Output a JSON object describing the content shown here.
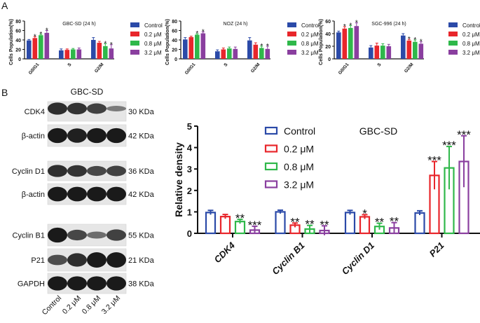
{
  "panel_labels": {
    "a": "A",
    "b": "B"
  },
  "colors": {
    "control": "#2b4aa8",
    "c02": "#e8262b",
    "c08": "#2fb84a",
    "c32": "#8a3f9f"
  },
  "legend": [
    "Control",
    "0.2 μM",
    "0.8 μM",
    "3.2 μM"
  ],
  "chart_data": [
    {
      "type": "bar",
      "title": "GBC-SD (24 h)",
      "ylabel": "Cells Population(%)",
      "categories": [
        "G0/G1",
        "S",
        "G2/M"
      ],
      "ylim": [
        0,
        80
      ],
      "yticks": [
        0,
        20,
        40,
        60,
        80
      ],
      "series": [
        {
          "name": "Control",
          "values": [
            39,
            18,
            40
          ],
          "errors": [
            2,
            3,
            5
          ],
          "stars": [
            "",
            "",
            ""
          ]
        },
        {
          "name": "0.2 μM",
          "values": [
            44,
            19,
            34
          ],
          "errors": [
            3,
            2,
            3
          ],
          "stars": [
            "*",
            "",
            ""
          ]
        },
        {
          "name": "0.8 μM",
          "values": [
            50,
            20,
            27
          ],
          "errors": [
            2,
            2,
            5
          ],
          "stars": [
            "*",
            "",
            "*"
          ]
        },
        {
          "name": "3.2 μM",
          "values": [
            55,
            20,
            22
          ],
          "errors": [
            5,
            3,
            8
          ],
          "stars": [
            "*",
            "",
            "*"
          ]
        }
      ]
    },
    {
      "type": "bar",
      "title": "NOZ (24 h)",
      "ylabel": "Cells Population(%)",
      "categories": [
        "G0/G1",
        "S",
        "G2/M"
      ],
      "ylim": [
        0,
        80
      ],
      "yticks": [
        0,
        20,
        40,
        60,
        80
      ],
      "series": [
        {
          "name": "Control",
          "values": [
            41,
            16,
            39
          ],
          "errors": [
            4,
            3,
            6
          ],
          "stars": [
            "",
            "",
            ""
          ]
        },
        {
          "name": "0.2 μM",
          "values": [
            46,
            20,
            30
          ],
          "errors": [
            2,
            3,
            4
          ],
          "stars": [
            "",
            "",
            ""
          ]
        },
        {
          "name": "0.8 μM",
          "values": [
            51,
            22,
            23
          ],
          "errors": [
            2,
            3,
            4
          ],
          "stars": [
            "*",
            "",
            "*"
          ]
        },
        {
          "name": "3.2 μM",
          "values": [
            54,
            21,
            21
          ],
          "errors": [
            3,
            4,
            6
          ],
          "stars": [
            "*",
            "",
            "*"
          ]
        }
      ]
    },
    {
      "type": "bar",
      "title": "SGC-996 (24 h)",
      "ylabel": "Cells Population(%)",
      "categories": [
        "G0/G1",
        "S",
        "G2/M"
      ],
      "ylim": [
        0,
        60
      ],
      "yticks": [
        0,
        20,
        40,
        60
      ],
      "series": [
        {
          "name": "Control",
          "values": [
            42,
            18,
            37
          ],
          "errors": [
            2,
            3,
            3
          ],
          "stars": [
            "",
            "",
            ""
          ]
        },
        {
          "name": "0.2 μM",
          "values": [
            48,
            21,
            29
          ],
          "errors": [
            3,
            4,
            2
          ],
          "stars": [
            "*",
            "",
            "*"
          ]
        },
        {
          "name": "0.8 μM",
          "values": [
            49,
            21,
            27
          ],
          "errors": [
            4,
            3,
            3
          ],
          "stars": [
            "*",
            "",
            "*"
          ]
        },
        {
          "name": "3.2 μM",
          "values": [
            52,
            20,
            24
          ],
          "errors": [
            5,
            3,
            3
          ],
          "stars": [
            "*",
            "",
            "*"
          ]
        }
      ]
    },
    {
      "type": "bar",
      "title": "GBC-SD",
      "ylabel": "Relative density",
      "categories": [
        "CDK4",
        "Cyclin B1",
        "Cyclin D1",
        "P21"
      ],
      "ylim": [
        0,
        5
      ],
      "yticks": [
        0,
        1,
        2,
        3,
        4,
        5
      ],
      "series": [
        {
          "name": "Control",
          "values": [
            0.97,
            1.0,
            0.97,
            0.95
          ],
          "errors": [
            0.1,
            0.08,
            0.1,
            0.1
          ],
          "stars": [
            "",
            "",
            "",
            ""
          ]
        },
        {
          "name": "0.2 μM",
          "values": [
            0.78,
            0.38,
            0.77,
            2.7
          ],
          "errors": [
            0.1,
            0.1,
            0.1,
            0.65
          ],
          "stars": [
            "",
            "**",
            "*",
            "***"
          ]
        },
        {
          "name": "0.8 μM",
          "values": [
            0.55,
            0.2,
            0.32,
            3.05
          ],
          "errors": [
            0.1,
            0.17,
            0.15,
            1.0
          ],
          "stars": [
            "**",
            "**",
            "**",
            "***"
          ]
        },
        {
          "name": "3.2 μM",
          "values": [
            0.15,
            0.13,
            0.25,
            3.35
          ],
          "errors": [
            0.18,
            0.22,
            0.25,
            1.2
          ],
          "stars": [
            "***",
            "**",
            "**",
            "***"
          ]
        }
      ]
    }
  ],
  "blot": {
    "title": "GBC-SD",
    "lanes": [
      "Control",
      "0.2 μM",
      "0.8 μM",
      "3.2 μM"
    ],
    "rows": [
      {
        "protein": "CDK4",
        "size": "30 KDa",
        "intensity": [
          0.85,
          0.8,
          0.7,
          0.25
        ]
      },
      {
        "protein": "β-actin",
        "size": "42 KDa",
        "intensity": [
          1,
          0.95,
          1,
          1
        ]
      },
      {
        "protein": "Cyclin D1",
        "size": "36 KDa",
        "intensity": [
          0.85,
          0.8,
          0.65,
          0.7
        ]
      },
      {
        "protein": "β-actin",
        "size": "42 KDa",
        "intensity": [
          1,
          1,
          1,
          1
        ]
      },
      {
        "protein": "Cyclin B1",
        "size": "55 KDa",
        "intensity": [
          1,
          0.65,
          0.35,
          0.7
        ]
      },
      {
        "protein": "P21",
        "size": "21 KDa",
        "intensity": [
          0.6,
          0.85,
          1,
          1
        ]
      },
      {
        "protein": "GAPDH",
        "size": "38 KDa",
        "intensity": [
          1,
          1,
          1,
          1
        ]
      }
    ]
  }
}
